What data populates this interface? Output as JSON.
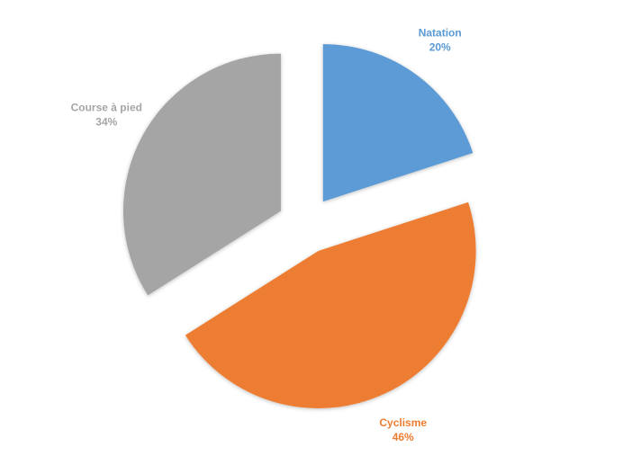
{
  "chart_data": {
    "type": "pie",
    "categories": [
      "Natation",
      "Cyclisme",
      "Course à pied"
    ],
    "values": [
      20,
      46,
      34
    ],
    "value_labels": [
      "20%",
      "46%",
      "34%"
    ],
    "colors": [
      "#5b9bd5",
      "#ed7d31",
      "#a5a5a5"
    ],
    "exploded": true
  }
}
